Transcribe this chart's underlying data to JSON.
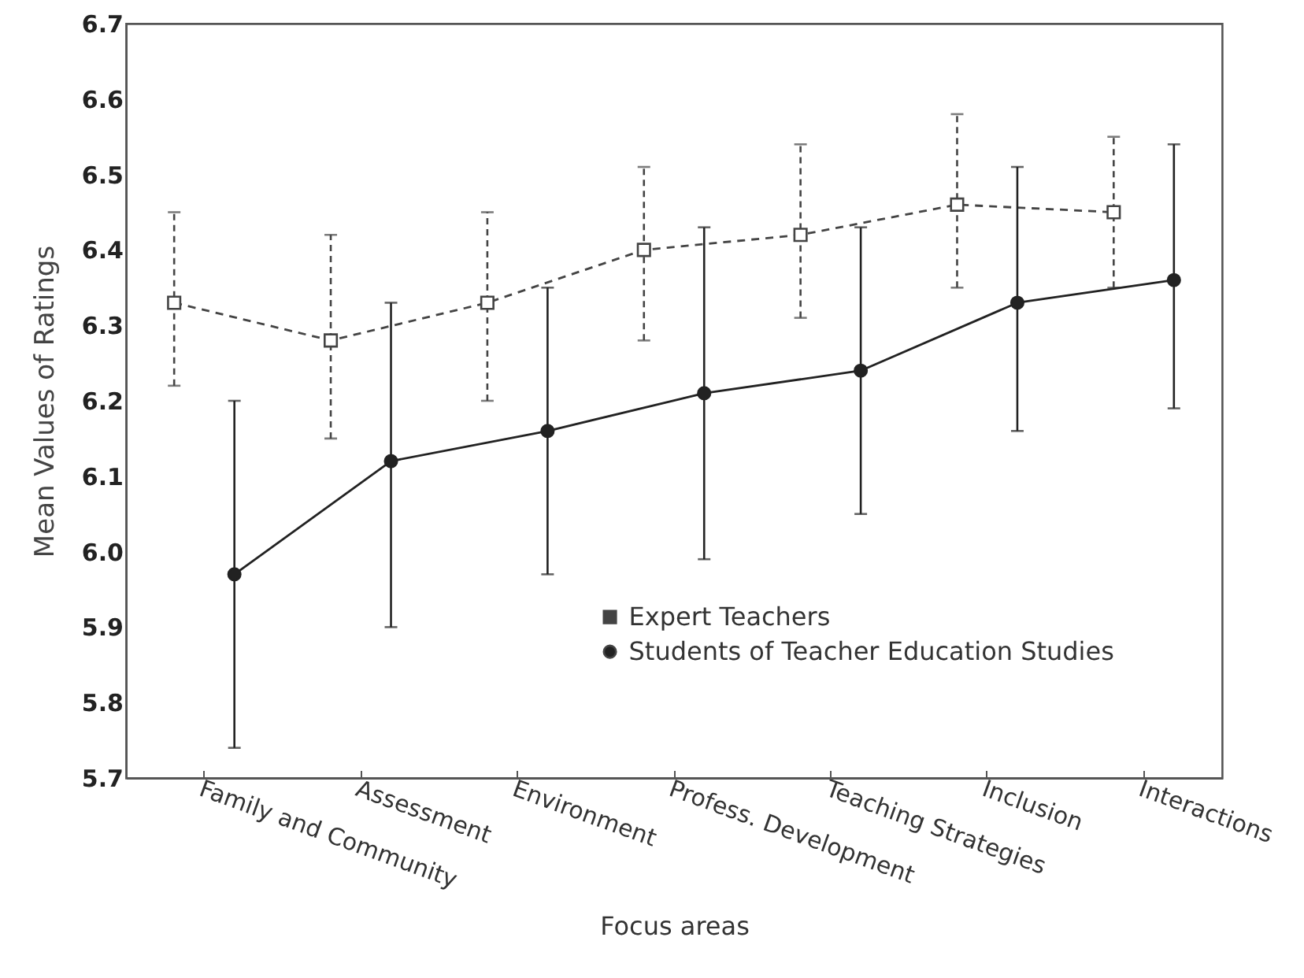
{
  "chart_data": {
    "type": "line",
    "xlabel": "Focus areas",
    "ylabel": "Mean Values of Ratings",
    "categories": [
      "Family and Community",
      "Assessment",
      "Environment",
      "Profess. Development",
      "Teaching Strategies",
      "Inclusion",
      "Interactions"
    ],
    "series": [
      {
        "name": "Expert Teachers",
        "color": "#444444",
        "marker": "square",
        "line_style": "dashed",
        "values": [
          6.33,
          6.28,
          6.33,
          6.4,
          6.42,
          6.46,
          6.45
        ],
        "errors": [
          [
            6.22,
            6.45
          ],
          [
            6.15,
            6.42
          ],
          [
            6.2,
            6.45
          ],
          [
            6.28,
            6.51
          ],
          [
            6.31,
            6.54
          ],
          [
            6.35,
            6.58
          ],
          [
            6.35,
            6.55
          ]
        ]
      },
      {
        "name": "Students of Teacher Education Studies",
        "color": "#222222",
        "marker": "circle",
        "line_style": "solid",
        "values": [
          5.97,
          6.12,
          6.16,
          6.21,
          6.24,
          6.33,
          6.36
        ],
        "errors": [
          [
            5.74,
            6.2
          ],
          [
            5.9,
            6.33
          ],
          [
            5.97,
            6.35
          ],
          [
            5.99,
            6.43
          ],
          [
            6.05,
            6.43
          ],
          [
            6.16,
            6.51
          ],
          [
            6.19,
            6.54
          ]
        ]
      }
    ],
    "ylim": [
      5.7,
      6.7
    ],
    "yticks": [
      5.7,
      5.8,
      5.9,
      {
        "value": 6,
        "label": "6.0"
      },
      6.1,
      6.2,
      6.3,
      6.4,
      6.5,
      6.6,
      6.7
    ],
    "grid": false,
    "legend": "bottom"
  }
}
